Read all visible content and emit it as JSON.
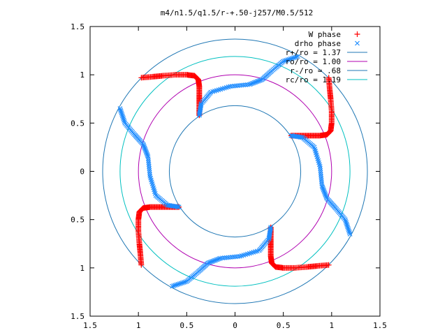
{
  "chart_data": {
    "type": "scatter",
    "title": "m4/n1.5/q1.5/r-+.50-j257/M0.5/512",
    "xlabel": "",
    "ylabel": "",
    "xlim": [
      -1.5,
      1.5
    ],
    "ylim": [
      -1.5,
      1.5
    ],
    "grid": false,
    "legend_position": "top-right",
    "x_ticks": [
      -1.5,
      -1,
      -0.5,
      0,
      0.5,
      1,
      1.5
    ],
    "y_ticks": [
      -1.5,
      -1,
      -0.5,
      0,
      0.5,
      1,
      1.5
    ],
    "x_tick_labels": [
      "1.5",
      "1",
      "0.5",
      "0",
      "0.5",
      "1",
      "1.5"
    ],
    "y_tick_labels": [
      "1.5",
      "1",
      "0.5",
      "0",
      "0.5",
      "1",
      "1.5"
    ],
    "series": [
      {
        "name": "W phase",
        "marker": "+",
        "color": "#ff0000",
        "segments": [
          [
            [
              -0.97,
              0.97
            ],
            [
              -0.85,
              0.98
            ],
            [
              -0.75,
              0.99
            ],
            [
              -0.62,
              1.0
            ],
            [
              -0.5,
              1.0
            ],
            [
              -0.42,
              0.99
            ],
            [
              -0.38,
              0.95
            ],
            [
              -0.37,
              0.88
            ],
            [
              -0.37,
              0.78
            ],
            [
              -0.37,
              0.68
            ],
            [
              -0.37,
              0.58
            ]
          ],
          [
            [
              0.97,
              0.97
            ],
            [
              0.98,
              0.85
            ],
            [
              0.99,
              0.75
            ],
            [
              1.0,
              0.62
            ],
            [
              1.0,
              0.5
            ],
            [
              0.99,
              0.42
            ],
            [
              0.95,
              0.38
            ],
            [
              0.88,
              0.37
            ],
            [
              0.78,
              0.37
            ],
            [
              0.68,
              0.37
            ],
            [
              0.58,
              0.37
            ]
          ],
          [
            [
              0.97,
              -0.97
            ],
            [
              0.85,
              -0.98
            ],
            [
              0.75,
              -0.99
            ],
            [
              0.62,
              -1.0
            ],
            [
              0.5,
              -1.0
            ],
            [
              0.42,
              -0.99
            ],
            [
              0.38,
              -0.95
            ],
            [
              0.37,
              -0.88
            ],
            [
              0.37,
              -0.78
            ],
            [
              0.37,
              -0.68
            ],
            [
              0.37,
              -0.58
            ]
          ],
          [
            [
              -0.97,
              -0.97
            ],
            [
              -0.98,
              -0.85
            ],
            [
              -0.99,
              -0.75
            ],
            [
              -1.0,
              -0.62
            ],
            [
              -1.0,
              -0.5
            ],
            [
              -0.99,
              -0.42
            ],
            [
              -0.95,
              -0.38
            ],
            [
              -0.88,
              -0.37
            ],
            [
              -0.78,
              -0.37
            ],
            [
              -0.68,
              -0.37
            ],
            [
              -0.58,
              -0.37
            ]
          ]
        ]
      },
      {
        "name": "drho phase",
        "marker": "x",
        "color": "#1e8cff",
        "segments": [
          [
            [
              -0.37,
              0.58
            ],
            [
              -0.35,
              0.7
            ],
            [
              -0.25,
              0.82
            ],
            [
              -0.05,
              0.88
            ],
            [
              0.15,
              0.9
            ],
            [
              0.28,
              0.95
            ],
            [
              0.38,
              1.04
            ],
            [
              0.5,
              1.14
            ],
            [
              0.65,
              1.19
            ]
          ],
          [
            [
              0.58,
              0.37
            ],
            [
              0.7,
              0.35
            ],
            [
              0.82,
              0.25
            ],
            [
              0.88,
              0.05
            ],
            [
              0.9,
              -0.15
            ],
            [
              0.95,
              -0.28
            ],
            [
              1.04,
              -0.38
            ],
            [
              1.14,
              -0.5
            ],
            [
              1.19,
              -0.65
            ]
          ],
          [
            [
              0.37,
              -0.58
            ],
            [
              0.35,
              -0.7
            ],
            [
              0.25,
              -0.82
            ],
            [
              0.05,
              -0.88
            ],
            [
              -0.15,
              -0.9
            ],
            [
              -0.28,
              -0.95
            ],
            [
              -0.38,
              -1.04
            ],
            [
              -0.5,
              -1.14
            ],
            [
              -0.65,
              -1.19
            ]
          ],
          [
            [
              -0.58,
              -0.37
            ],
            [
              -0.7,
              -0.35
            ],
            [
              -0.82,
              -0.25
            ],
            [
              -0.88,
              -0.05
            ],
            [
              -0.9,
              0.15
            ],
            [
              -0.95,
              0.28
            ],
            [
              -1.04,
              0.38
            ],
            [
              -1.14,
              0.5
            ],
            [
              -1.19,
              0.65
            ]
          ]
        ]
      }
    ],
    "circles": [
      {
        "name": "r+/ro = 1.37",
        "radius": 1.37,
        "color": "#1f77b4"
      },
      {
        "name": "ro/ro = 1.00",
        "radius": 1.0,
        "color": "#b000b0"
      },
      {
        "name": "r-/ro = .68",
        "radius": 0.68,
        "color": "#1f77b4"
      },
      {
        "name": "rc/ro = 1.19",
        "radius": 1.19,
        "color": "#00c0c0"
      }
    ]
  }
}
